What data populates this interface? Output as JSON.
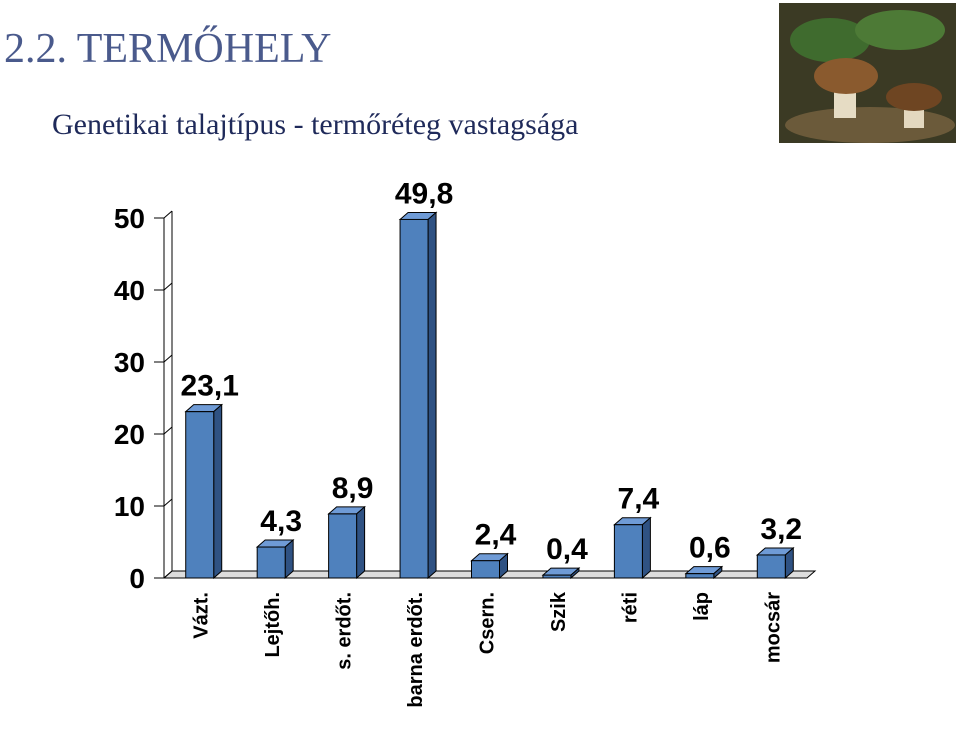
{
  "chart_data": {
    "type": "bar3d",
    "title": "2.2. TERMŐHELY",
    "subtitle": "Genetikai talajtípus - termőréteg vastagsága",
    "categories": [
      "Vázt.",
      "Lejtőh.",
      "s. erdőt.",
      "barna erdőt.",
      "Csern.",
      "Szik",
      "réti",
      "láp",
      "mocsár"
    ],
    "values": [
      23.1,
      4.3,
      8.9,
      49.8,
      2.4,
      0.4,
      7.4,
      0.6,
      3.2
    ],
    "value_labels": [
      "23,1",
      "4,3",
      "8,9",
      "49,8",
      "2,4",
      "0,4",
      "7,4",
      "0,6",
      "3,2"
    ],
    "color": "#4f81bd",
    "ylim": [
      0,
      50
    ],
    "yticks": [
      0,
      10,
      20,
      30,
      40,
      50
    ]
  }
}
